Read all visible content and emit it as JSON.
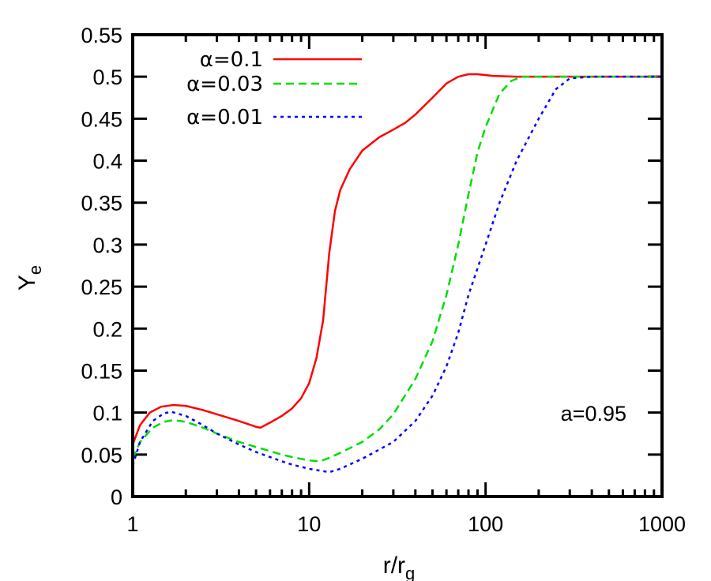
{
  "chart_data": {
    "type": "line",
    "xlabel": "r/r",
    "xlabel_sub": "g",
    "ylabel": "Y",
    "ylabel_sub": "e",
    "x_scale": "log",
    "xlim": [
      1,
      1000
    ],
    "ylim": [
      0,
      0.55
    ],
    "grid": false,
    "legend_position": "top-left",
    "x_ticks": [
      {
        "value": 1,
        "label": "1"
      },
      {
        "value": 10,
        "label": "10"
      },
      {
        "value": 100,
        "label": "100"
      },
      {
        "value": 1000,
        "label": "1000"
      }
    ],
    "y_ticks": [
      {
        "value": 0,
        "label": "0"
      },
      {
        "value": 0.05,
        "label": "0.05"
      },
      {
        "value": 0.1,
        "label": "0.1"
      },
      {
        "value": 0.15,
        "label": "0.15"
      },
      {
        "value": 0.2,
        "label": "0.2"
      },
      {
        "value": 0.25,
        "label": "0.25"
      },
      {
        "value": 0.3,
        "label": "0.3"
      },
      {
        "value": 0.35,
        "label": "0.35"
      },
      {
        "value": 0.4,
        "label": "0.4"
      },
      {
        "value": 0.45,
        "label": "0.45"
      },
      {
        "value": 0.5,
        "label": "0.5"
      },
      {
        "value": 0.55,
        "label": "0.55"
      }
    ],
    "annotations": [
      {
        "text": "a=0.95",
        "x": 200,
        "y": 0.097
      }
    ],
    "series": [
      {
        "name": "α=0.1",
        "color": "#ff0000",
        "dash": "solid",
        "points": [
          [
            1.0,
            0.062
          ],
          [
            1.1,
            0.085
          ],
          [
            1.25,
            0.1
          ],
          [
            1.45,
            0.107
          ],
          [
            1.7,
            0.109
          ],
          [
            2.0,
            0.108
          ],
          [
            2.5,
            0.103
          ],
          [
            3.0,
            0.098
          ],
          [
            4.0,
            0.09
          ],
          [
            5.0,
            0.083
          ],
          [
            5.3,
            0.082
          ],
          [
            6.0,
            0.088
          ],
          [
            7.0,
            0.096
          ],
          [
            8.0,
            0.105
          ],
          [
            9.0,
            0.117
          ],
          [
            10.0,
            0.135
          ],
          [
            11.0,
            0.165
          ],
          [
            12.0,
            0.21
          ],
          [
            13.0,
            0.29
          ],
          [
            14.0,
            0.34
          ],
          [
            15.0,
            0.365
          ],
          [
            17.0,
            0.39
          ],
          [
            20.0,
            0.412
          ],
          [
            25.0,
            0.428
          ],
          [
            30.0,
            0.437
          ],
          [
            35.0,
            0.445
          ],
          [
            40.0,
            0.455
          ],
          [
            50.0,
            0.475
          ],
          [
            60.0,
            0.492
          ],
          [
            70.0,
            0.5
          ],
          [
            80.0,
            0.503
          ],
          [
            90.0,
            0.503
          ],
          [
            110.0,
            0.501
          ],
          [
            150.0,
            0.5
          ],
          [
            200.0,
            0.5
          ],
          [
            1000.0,
            0.5
          ]
        ]
      },
      {
        "name": "α=0.03",
        "color": "#00dd00",
        "dash": "long",
        "points": [
          [
            1.0,
            0.045
          ],
          [
            1.1,
            0.065
          ],
          [
            1.3,
            0.082
          ],
          [
            1.5,
            0.089
          ],
          [
            1.7,
            0.091
          ],
          [
            2.0,
            0.089
          ],
          [
            2.5,
            0.082
          ],
          [
            3.0,
            0.075
          ],
          [
            4.0,
            0.065
          ],
          [
            5.0,
            0.059
          ],
          [
            6.0,
            0.054
          ],
          [
            7.0,
            0.05
          ],
          [
            8.0,
            0.047
          ],
          [
            10.0,
            0.043
          ],
          [
            11.5,
            0.042
          ],
          [
            13.0,
            0.046
          ],
          [
            15.0,
            0.052
          ],
          [
            20.0,
            0.065
          ],
          [
            25.0,
            0.08
          ],
          [
            30.0,
            0.098
          ],
          [
            40.0,
            0.14
          ],
          [
            50.0,
            0.185
          ],
          [
            60.0,
            0.24
          ],
          [
            70.0,
            0.3
          ],
          [
            80.0,
            0.36
          ],
          [
            90.0,
            0.41
          ],
          [
            100.0,
            0.44
          ],
          [
            120.0,
            0.48
          ],
          [
            140.0,
            0.495
          ],
          [
            160.0,
            0.5
          ],
          [
            200.0,
            0.5
          ],
          [
            1000.0,
            0.5
          ]
        ]
      },
      {
        "name": "α=0.01",
        "color": "#0000ff",
        "dash": "short",
        "points": [
          [
            1.0,
            0.037
          ],
          [
            1.1,
            0.065
          ],
          [
            1.3,
            0.09
          ],
          [
            1.5,
            0.099
          ],
          [
            1.65,
            0.101
          ],
          [
            2.0,
            0.096
          ],
          [
            2.5,
            0.085
          ],
          [
            3.0,
            0.075
          ],
          [
            4.0,
            0.062
          ],
          [
            5.0,
            0.053
          ],
          [
            6.0,
            0.047
          ],
          [
            7.0,
            0.042
          ],
          [
            8.0,
            0.038
          ],
          [
            10.0,
            0.033
          ],
          [
            13.0,
            0.029
          ],
          [
            15.0,
            0.033
          ],
          [
            20.0,
            0.045
          ],
          [
            30.0,
            0.065
          ],
          [
            40.0,
            0.09
          ],
          [
            50.0,
            0.12
          ],
          [
            60.0,
            0.155
          ],
          [
            70.0,
            0.195
          ],
          [
            80.0,
            0.24
          ],
          [
            100.0,
            0.3
          ],
          [
            120.0,
            0.35
          ],
          [
            150.0,
            0.4
          ],
          [
            200.0,
            0.45
          ],
          [
            250.0,
            0.485
          ],
          [
            300.0,
            0.498
          ],
          [
            400.0,
            0.5
          ],
          [
            1000.0,
            0.5
          ]
        ]
      }
    ]
  }
}
